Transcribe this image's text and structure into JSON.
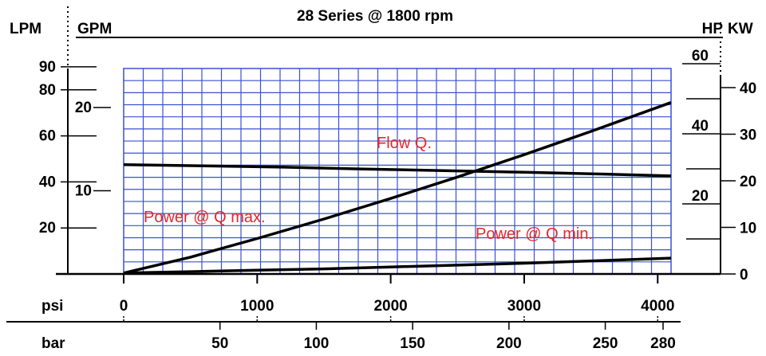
{
  "chart_data": {
    "type": "line",
    "title": "28 Series @ 1800 rpm",
    "left_axis_units": [
      "LPM",
      "GPM"
    ],
    "right_axis_units": [
      "HP",
      "KW"
    ],
    "x_axis": {
      "psi": {
        "label": "psi",
        "ticks": [
          "0",
          "1000",
          "2000",
          "3000",
          "4000"
        ],
        "range": [
          0,
          4100
        ]
      },
      "bar": {
        "label": "bar",
        "ticks": [
          "50",
          "100",
          "150",
          "200",
          "250",
          "280"
        ],
        "tick_values": [
          50,
          100,
          150,
          200,
          250,
          280
        ]
      }
    },
    "y_axis_left": {
      "lpm": {
        "ticks": [
          "90",
          "80",
          "60",
          "40",
          "20"
        ],
        "tick_values": [
          90,
          80,
          60,
          40,
          20
        ]
      },
      "gpm": {
        "ticks": [
          "20",
          "10"
        ],
        "tick_values": [
          20,
          10
        ]
      }
    },
    "y_axis_right": {
      "hp": {
        "ticks": [
          "60",
          "40",
          "20"
        ],
        "tick_values": [
          60,
          40,
          20
        ]
      },
      "kw": {
        "ticks": [
          "40",
          "30",
          "20",
          "10",
          "0"
        ],
        "tick_values": [
          40,
          30,
          20,
          10,
          0
        ]
      }
    },
    "grid": true,
    "grid_color": "#3b4fd6",
    "annotation_color": "#e8262d",
    "annotations": [
      "Flow Q.",
      "Power @ Q max.",
      "Power @ Q min."
    ],
    "series": [
      {
        "x": [
          0,
          600,
          1200,
          1800,
          2400,
          3000,
          3600,
          4100
        ],
        "y": [
          47.5,
          47.0,
          46.4,
          45.6,
          44.9,
          44.2,
          43.4,
          42.6
        ]
      },
      {
        "x": [
          0,
          500,
          1000,
          1500,
          2000,
          2500,
          3000,
          3500,
          4100
        ],
        "y": [
          0.2,
          3.6,
          7.6,
          11.8,
          16.2,
          20.8,
          25.6,
          30.6,
          36.8
        ]
      },
      {
        "x": [
          0,
          500,
          1000,
          1500,
          2000,
          2500,
          3000,
          3500,
          4100
        ],
        "y": [
          0.2,
          0.5,
          0.8,
          1.1,
          1.5,
          1.9,
          2.3,
          2.8,
          3.4
        ]
      }
    ]
  }
}
